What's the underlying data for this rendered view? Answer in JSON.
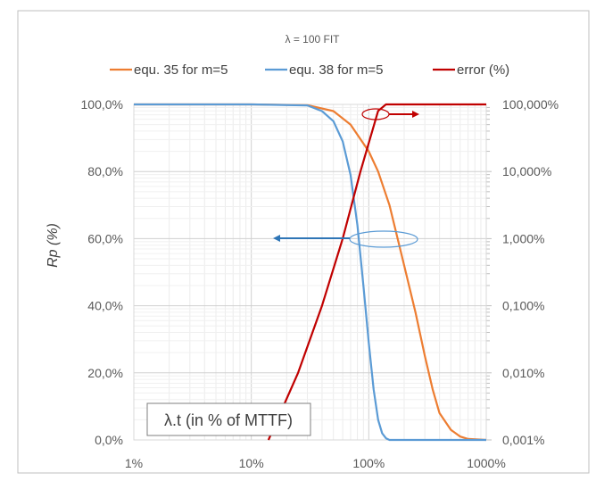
{
  "chart_data": {
    "type": "line",
    "title": "λ = 100 FIT",
    "xlabel": "λ.t (in % of MTTF)",
    "ylabel_left": "Rp (%)",
    "ylabel_right": "",
    "x_scale": "log",
    "x_range": [
      1,
      1000
    ],
    "x_ticks": [
      "1%",
      "10%",
      "100%",
      "1000%"
    ],
    "y_left_range": [
      0,
      100
    ],
    "y_left_ticks": [
      "0,0%",
      "20,0%",
      "40,0%",
      "60,0%",
      "80,0%",
      "100,0%"
    ],
    "y_right_scale": "log",
    "y_right_range": [
      0.001,
      100
    ],
    "y_right_ticks": [
      "0,001%",
      "0,010%",
      "0,100%",
      "1,000%",
      "10,000%",
      "100,000%"
    ],
    "grid": true,
    "legend_position": "top",
    "colors": {
      "eq35": "#ED7D31",
      "eq38": "#5B9BD5",
      "error": "#C00000",
      "annotation_arrow": "#2E75B6"
    },
    "series": [
      {
        "name": "equ. 35 for m=5",
        "axis": "left",
        "color": "#ED7D31",
        "x": [
          1,
          10,
          30,
          50,
          70,
          100,
          120,
          150,
          200,
          250,
          300,
          350,
          400,
          500,
          600,
          700,
          1000
        ],
        "y": [
          100,
          100,
          99.8,
          98,
          94,
          86,
          80,
          70,
          52,
          38,
          25,
          15,
          8,
          3,
          1,
          0.3,
          0
        ]
      },
      {
        "name": "equ. 38 for m=5",
        "axis": "left",
        "color": "#5B9BD5",
        "x": [
          1,
          10,
          30,
          40,
          50,
          60,
          70,
          80,
          90,
          100,
          110,
          120,
          130,
          140,
          150,
          1000
        ],
        "y": [
          100,
          100,
          99.7,
          98,
          95,
          89,
          79,
          64,
          46,
          29,
          15,
          6,
          2,
          0.5,
          0,
          0
        ]
      },
      {
        "name": "error (%)",
        "axis": "right",
        "color": "#C00000",
        "x": [
          14,
          25,
          40,
          60,
          85,
          120,
          140,
          1000
        ],
        "y": [
          0.001,
          0.01,
          0.1,
          1,
          10,
          80,
          100,
          100
        ]
      }
    ]
  }
}
